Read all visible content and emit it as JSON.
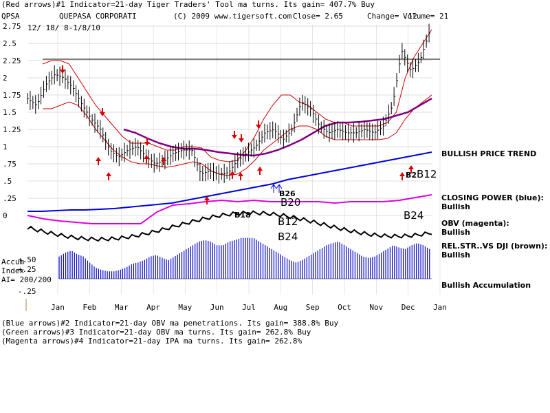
{
  "header": {
    "indicator1": "(Red arrows)#1 Indicator=21-day Tiger Traders' Tool ma turns. Its gain= 407.7% Buy",
    "symbol": "QPSA",
    "company": "QUEPASA CORPORATI",
    "copyright": "(C) 2009 www.tigersoft.com",
    "close": "Close=  2.65",
    "change": "Change= .12",
    "volume": "Volume= 21",
    "range": "12/ 18/ 8-1/8/10"
  },
  "footer": {
    "lines": [
      "(Blue arrows)#2 Indicator=21-day OBV ma penetrations. Its gain= 388.8% Buy",
      "(Green arrows)#3 Indicator=21-day OBV ma turns. Its gain= 262.8% Buy",
      "(Magenta arrows)#4 Indicator=21-day IPA ma turns. Its gain= 262.8%"
    ]
  },
  "labels": {
    "price_trend": "BULLISH PRICE TREND",
    "closing_power": "CLOSING POWER (blue):",
    "closing_power_state": "Bullish",
    "obv": "OBV (magenta):",
    "obv_state": "Bullish",
    "relstr": "REL.STR..VS DJI (brown):",
    "relstr_state": "Bullish",
    "accumulation": "Bullish Accumulation",
    "accum_title": "Accum",
    "accum_index": "Index",
    "ai": "AI= 200/200",
    "accum_ticks": [
      "+.50",
      "+.25",
      "-.25"
    ]
  },
  "signals": [
    "B12",
    "B20",
    "B18",
    "B12",
    "B24",
    "B24",
    "B26",
    "B2"
  ],
  "colors": {
    "price_bars": "#000000",
    "bands": "#cc0000",
    "ma": "#800080",
    "closing_power": "#0000dd",
    "obv": "#dd00dd",
    "relstr": "#000000",
    "accum": "#0000cc"
  },
  "chart_data": {
    "type": "line",
    "title": "QUEPASA CORPORATI",
    "y_ticks": [
      2.75,
      2.5,
      2.25,
      2,
      1.75,
      1.5,
      1.25,
      1,
      0.75,
      0.5,
      0.25,
      0
    ],
    "y_tick_labels": [
      "2.75",
      "2.5",
      "2.25",
      "2",
      "1.75",
      "1.5",
      "1.25",
      "1",
      ".75",
      ".5",
      ".25",
      "0"
    ],
    "x_labels": [
      "Jan",
      "Feb",
      "Mar",
      "Apr",
      "May",
      "Jun",
      "Jul",
      "Aug",
      "Sep",
      "Oct",
      "Nov",
      "Dec",
      "Jan"
    ],
    "ylim": [
      0,
      2.75
    ],
    "resistance_line": 2.27,
    "series": [
      {
        "values": [
          1.7,
          1.6,
          1.9,
          2.05,
          2.0,
          1.85,
          1.6,
          1.4,
          1.25,
          0.95,
          0.85,
          0.95,
          1.0,
          0.85,
          0.75,
          0.8,
          0.9,
          0.95,
          0.95,
          0.6,
          0.65,
          0.6,
          0.62,
          0.8,
          0.9,
          1.0,
          1.2,
          1.25,
          1.1,
          1.25,
          1.65,
          1.55,
          1.3,
          1.2,
          1.25,
          1.2,
          1.2,
          1.25,
          1.2,
          1.3,
          1.6,
          2.4,
          2.1,
          2.25,
          2.65
        ]
      },
      {
        "name": "upper band",
        "values": [
          2.2,
          2.25,
          2.25,
          2.2,
          2.0,
          1.8,
          1.6,
          1.45,
          1.3,
          1.15,
          1.05,
          1.05,
          1.05,
          1.0,
          0.95,
          0.95,
          1.0,
          1.0,
          0.98,
          0.85,
          0.8,
          0.78,
          0.8,
          0.95,
          1.15,
          1.4,
          1.6,
          1.75,
          1.75,
          1.65,
          1.6,
          1.5,
          1.4,
          1.35,
          1.35,
          1.3,
          1.3,
          1.3,
          1.3,
          1.35,
          1.5,
          2.0,
          2.3,
          2.5,
          2.7
        ]
      },
      {
        "name": "lower band",
        "values": [
          1.55,
          1.55,
          1.6,
          1.65,
          1.6,
          1.45,
          1.25,
          1.1,
          0.95,
          0.85,
          0.78,
          0.75,
          0.75,
          0.72,
          0.7,
          0.72,
          0.75,
          0.78,
          0.75,
          0.65,
          0.6,
          0.58,
          0.6,
          0.68,
          0.8,
          0.95,
          1.05,
          1.15,
          1.25,
          1.3,
          1.3,
          1.25,
          1.15,
          1.1,
          1.1,
          1.1,
          1.1,
          1.1,
          1.1,
          1.12,
          1.2,
          1.4,
          1.55,
          1.65,
          1.75
        ]
      },
      {
        "name": "moving average",
        "values": [
          1.25,
          1.2,
          1.12,
          1.05,
          1.0,
          0.97,
          0.97,
          0.95,
          0.92,
          0.9,
          0.88,
          0.87,
          0.9,
          0.95,
          1.02,
          1.1,
          1.2,
          1.3,
          1.35,
          1.35,
          1.36,
          1.38,
          1.4,
          1.45,
          1.5,
          1.6,
          1.7
        ]
      },
      {
        "name": "closing power",
        "values": [
          0.06,
          0.06,
          0.07,
          0.08,
          0.08,
          0.09,
          0.1,
          0.12,
          0.14,
          0.16,
          0.18,
          0.22,
          0.26,
          0.3,
          0.34,
          0.38,
          0.42,
          0.46,
          0.52,
          0.56,
          0.6,
          0.64,
          0.68,
          0.72,
          0.76,
          0.8,
          0.84,
          0.88,
          0.92
        ]
      },
      {
        "name": "OBV",
        "values": [
          0.0,
          -0.05,
          -0.08,
          -0.1,
          -0.12,
          -0.12,
          -0.12,
          -0.12,
          0.05,
          0.15,
          0.17,
          0.2,
          0.22,
          0.2,
          0.22,
          0.2,
          0.2,
          0.2,
          0.2,
          0.18,
          0.2,
          0.2,
          0.2,
          0.22,
          0.26,
          0.3
        ]
      }
    ],
    "accumulation": {
      "ylim": [
        -0.25,
        0.6
      ],
      "values": [
        0.3,
        0.35,
        0.38,
        0.33,
        0.3,
        0.22,
        0.15,
        0.12,
        0.1,
        0.1,
        0.12,
        0.15,
        0.2,
        0.22,
        0.25,
        0.3,
        0.32,
        0.28,
        0.25,
        0.3,
        0.35,
        0.4,
        0.45,
        0.5,
        0.52,
        0.5,
        0.45,
        0.45,
        0.5,
        0.52,
        0.55,
        0.55,
        0.55,
        0.5,
        0.45,
        0.4,
        0.35,
        0.3,
        0.25,
        0.22,
        0.25,
        0.3,
        0.35,
        0.4,
        0.45,
        0.48,
        0.5,
        0.45,
        0.4,
        0.35,
        0.3,
        0.28,
        0.3,
        0.35,
        0.4,
        0.45,
        0.42,
        0.4,
        0.45,
        0.48,
        0.45,
        0.4
      ]
    }
  }
}
